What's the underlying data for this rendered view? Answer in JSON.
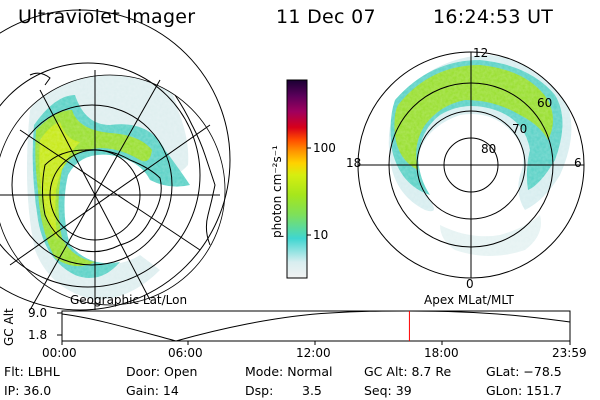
{
  "header": {
    "instrument": "Ultraviolet Imager",
    "date": "11 Dec 07",
    "time": "16:24:53 UT"
  },
  "left_panel": {
    "label": "Geographic Lat/Lon"
  },
  "right_panel": {
    "label": "Apex MLat/MLT",
    "mlt_labels": [
      "12",
      "18",
      "6",
      "0"
    ],
    "mlat_labels": [
      "60",
      "70",
      "80"
    ]
  },
  "colorbar": {
    "unit_label": "photon cm⁻²s⁻¹",
    "ticks": [
      "100",
      "10"
    ],
    "scale": "log",
    "colors": [
      "#f2f2f2",
      "#d8eef0",
      "#3fd6d0",
      "#7ee05a",
      "#a6e61c",
      "#d6ee10",
      "#ffd200",
      "#ff9600",
      "#ff4a00",
      "#d8001a",
      "#a0005e",
      "#5a005a",
      "#1a0033"
    ]
  },
  "timeline": {
    "axis_label": "GC Alt",
    "y_ticks": [
      "9.0",
      "1.8"
    ],
    "x_ticks": [
      "00:00",
      "06:00",
      "12:00",
      "18:00",
      "23:59"
    ],
    "current_time_fraction": 0.6839,
    "marker_color": "#ff0000"
  },
  "info": {
    "filter": "Flt: LBHL",
    "door": "Door: Open",
    "mode": "Mode: Normal",
    "gc_alt": "GC Alt: 8.7 Re",
    "glat": "GLat: −78.5",
    "ip": "IP: 36.0",
    "gain": "Gain: 14",
    "dsp_label": "Dsp:",
    "dsp_value": "3.5",
    "seq": "Seq: 39",
    "glon": "GLon: 151.7"
  }
}
